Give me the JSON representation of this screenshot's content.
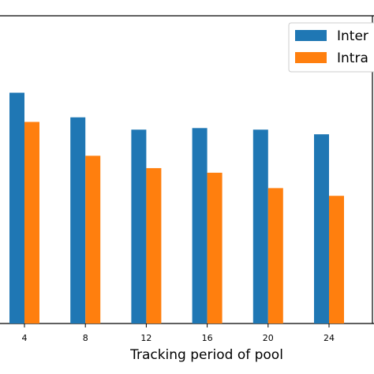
{
  "chart_data": {
    "type": "bar",
    "title": "",
    "xlabel": "Tracking period of pool",
    "ylabel": "",
    "categories": [
      "4",
      "8",
      "12",
      "16",
      "20",
      "24"
    ],
    "series": [
      {
        "name": "Inter",
        "color": "#1f77b4",
        "values": [
          0.75,
          0.67,
          0.63,
          0.635,
          0.63,
          0.615
        ]
      },
      {
        "name": "Intra",
        "color": "#ff7f0e",
        "values": [
          0.655,
          0.545,
          0.505,
          0.49,
          0.44,
          0.415
        ]
      }
    ],
    "ylim": [
      0,
      1
    ],
    "grid": false,
    "legend": "top-right"
  }
}
